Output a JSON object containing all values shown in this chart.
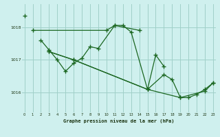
{
  "title": "Graphe pression niveau de la mer (hPa)",
  "background_color": "#cff0ee",
  "grid_color": "#a0d0c8",
  "line_color": "#1a6620",
  "marker_color": "#1a6620",
  "x_ticks": [
    0,
    1,
    2,
    3,
    4,
    5,
    6,
    7,
    8,
    9,
    10,
    11,
    12,
    13,
    14,
    15,
    16,
    17,
    18,
    19,
    20,
    21,
    22,
    23
  ],
  "y_ticks": [
    1016,
    1017,
    1018
  ],
  "ylim": [
    1015.4,
    1018.7
  ],
  "xlim": [
    -0.3,
    23.3
  ],
  "series": [
    [
      0,
      1018.35
    ],
    [
      1,
      1017.9,
      10,
      1017.9,
      11,
      1018.05,
      14,
      1017.9
    ],
    [
      2,
      1017.6,
      3,
      1017.3,
      4,
      1017.0,
      5,
      1016.65,
      6,
      1016.9,
      7,
      1017.05,
      8,
      1017.4,
      9,
      1017.35,
      11,
      1018.05,
      12,
      1018.05,
      13,
      1017.85,
      15,
      1016.1,
      16,
      1017.15,
      17,
      1016.8
    ],
    [
      3,
      1017.25,
      6,
      1017.0,
      15,
      1016.1,
      17,
      1016.55,
      18,
      1016.4,
      19,
      1015.85,
      20,
      1015.85,
      21,
      1015.95,
      22,
      1016.1,
      23,
      1016.3
    ],
    [
      3,
      1017.25,
      6,
      1017.0,
      15,
      1016.1,
      19,
      1015.85,
      22,
      1016.05,
      23,
      1016.3
    ]
  ]
}
